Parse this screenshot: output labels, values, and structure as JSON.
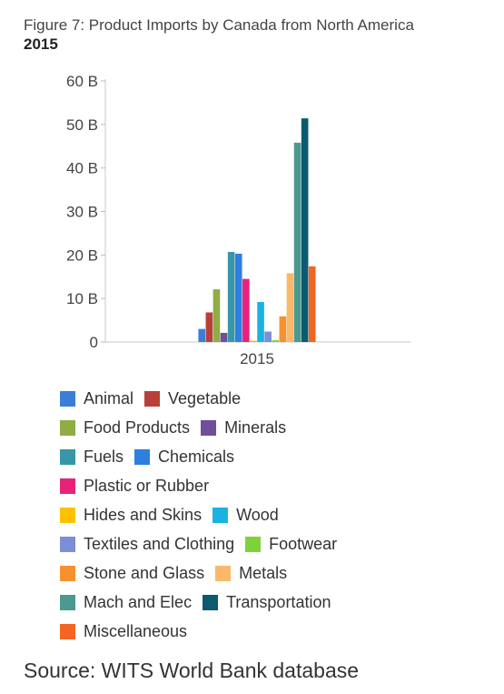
{
  "chart_data": {
    "type": "bar",
    "title": "Figure 7: Product Imports by Canada from North America",
    "subtitle": "2015",
    "categories": [
      "2015"
    ],
    "ylim": [
      0,
      60
    ],
    "yticks": [
      "0",
      "10 B",
      "20 B",
      "30 B",
      "40 B",
      "50 B",
      "60 B"
    ],
    "ytick_values": [
      0,
      10,
      20,
      30,
      40,
      50,
      60
    ],
    "grid": false,
    "legend_position": "bottom",
    "series": [
      {
        "name": "Animal",
        "color": "#3a7fd5",
        "values": [
          3.0
        ]
      },
      {
        "name": "Vegetable",
        "color": "#b8403a",
        "values": [
          6.8
        ]
      },
      {
        "name": "Food Products",
        "color": "#8fac45",
        "values": [
          12.1
        ]
      },
      {
        "name": "Minerals",
        "color": "#6f4f9a",
        "values": [
          2.1
        ]
      },
      {
        "name": "Fuels",
        "color": "#3896a8",
        "values": [
          20.7
        ]
      },
      {
        "name": "Chemicals",
        "color": "#2e7fe0",
        "values": [
          20.3
        ]
      },
      {
        "name": "Plastic or Rubber",
        "color": "#e8227a",
        "values": [
          14.5
        ]
      },
      {
        "name": "Hides and Skins",
        "color": "#ffc000",
        "values": [
          0.3
        ]
      },
      {
        "name": "Wood",
        "color": "#1ab3e0",
        "values": [
          9.2
        ]
      },
      {
        "name": "Textiles and Clothing",
        "color": "#7b8fd6",
        "values": [
          2.4
        ]
      },
      {
        "name": "Footwear",
        "color": "#7ed33b",
        "values": [
          0.4
        ]
      },
      {
        "name": "Stone and Glass",
        "color": "#f7912f",
        "values": [
          5.9
        ]
      },
      {
        "name": "Metals",
        "color": "#f9b86a",
        "values": [
          15.8
        ]
      },
      {
        "name": "Mach and Elec",
        "color": "#4b9990",
        "values": [
          45.8
        ]
      },
      {
        "name": "Transportation",
        "color": "#0c5a6f",
        "values": [
          51.4
        ]
      },
      {
        "name": "Miscellaneous",
        "color": "#f26522",
        "values": [
          17.4
        ]
      }
    ]
  },
  "legend_rows": [
    [
      0,
      1
    ],
    [
      2,
      3
    ],
    [
      4,
      5
    ],
    [
      6
    ],
    [
      7,
      8
    ],
    [
      9,
      10
    ],
    [
      11,
      12
    ],
    [
      13,
      14
    ],
    [
      15
    ]
  ],
  "source": "Source: WITS World Bank database"
}
